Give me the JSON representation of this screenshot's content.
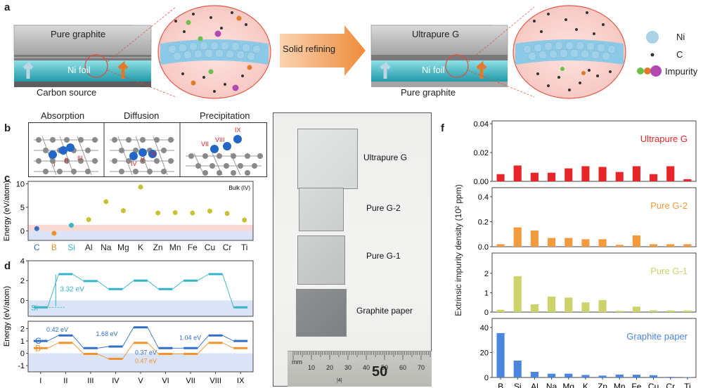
{
  "panel_a": {
    "label": "a",
    "left_stack": {
      "top_text": "Pure graphite",
      "foil_text": "Ni foil",
      "bottom_caption": "Carbon source"
    },
    "arrow_text": "Solid refining",
    "right_stack": {
      "top_text": "Ultrapure G",
      "foil_text": "Ni foil",
      "bottom_caption": "Pure graphite"
    },
    "legend": [
      {
        "name": "Ni",
        "color": "#a9d4e6"
      },
      {
        "name": "C",
        "color": "#333333"
      },
      {
        "name": "Impurity",
        "colors": [
          "#6cc04a",
          "#e07b2a",
          "#b14ab0"
        ]
      }
    ]
  },
  "panel_b": {
    "label": "b",
    "boxes": [
      {
        "title": "Absorption",
        "sites": [
          "I",
          "II",
          "III"
        ]
      },
      {
        "title": "Diffusion",
        "sites": [
          "IV",
          "V",
          "VI"
        ]
      },
      {
        "title": "Precipitation",
        "sites": [
          "VII",
          "VIII",
          "IX"
        ]
      }
    ]
  },
  "panel_c": {
    "label": "c",
    "ylabel": "Energy (eV/atom)",
    "annotation": "Bulk (IV)",
    "yticks": [
      "0",
      "5",
      "10"
    ],
    "elements": [
      {
        "name": "C",
        "value": 0.5,
        "color": "#2f6fc8"
      },
      {
        "name": "B",
        "value": -0.5,
        "color": "#f0922e"
      },
      {
        "name": "Si",
        "value": 1.2,
        "color": "#35b4c8"
      },
      {
        "name": "Al",
        "value": 2.4,
        "color": "#c8c232"
      },
      {
        "name": "Na",
        "value": 6.2,
        "color": "#c8c232"
      },
      {
        "name": "Mg",
        "value": 4.3,
        "color": "#c8c232"
      },
      {
        "name": "K",
        "value": 9.3,
        "color": "#c8c232"
      },
      {
        "name": "Zn",
        "value": 3.8,
        "color": "#c8c232"
      },
      {
        "name": "Mn",
        "value": 3.9,
        "color": "#c8c232"
      },
      {
        "name": "Fe",
        "value": 3.8,
        "color": "#c8c232"
      },
      {
        "name": "Cu",
        "value": 4.2,
        "color": "#c8c232"
      },
      {
        "name": "Cr",
        "value": 3.7,
        "color": "#c8c232"
      },
      {
        "name": "Ti",
        "value": 2.3,
        "color": "#c8c232"
      }
    ]
  },
  "panel_d": {
    "label": "d",
    "ylabel": "Energy (eV/atom)",
    "sites": [
      "I",
      "II",
      "III",
      "IV",
      "V",
      "VI",
      "VII",
      "VIII",
      "IX"
    ],
    "top": {
      "yticks": [
        "0",
        "2",
        "4"
      ],
      "series_label": "Si",
      "barrier_label": "3.32 eV",
      "si": [
        -0.7,
        2.65,
        1.95,
        1.15,
        2.0,
        1.15,
        2.0,
        2.65,
        -0.7
      ]
    },
    "bottom": {
      "yticks": [
        "-1",
        "0",
        "1",
        "2"
      ],
      "c_label": "C",
      "b_label": "B",
      "c": [
        1.0,
        1.45,
        0.42,
        0.55,
        2.1,
        0.42,
        0.42,
        1.45,
        1.0
      ],
      "b": [
        0.42,
        0.85,
        -0.05,
        -0.45,
        0.85,
        -0.05,
        -0.05,
        0.85,
        0.42
      ],
      "annotations": [
        "0.42 eV",
        "1.68 eV",
        "0.37 eV",
        "0.47 eV",
        "1.04 eV"
      ]
    }
  },
  "panel_e": {
    "label": "e",
    "samples": [
      "Ultrapure G",
      "Pure G-2",
      "Pure G-1",
      "Graphite paper"
    ],
    "ruler_unit": "mm",
    "ruler_numbers": [
      "10",
      "20",
      "30",
      "40",
      "50",
      "60",
      "70"
    ],
    "ruler_big": "50",
    "ruler_small": "|4|"
  },
  "panel_f": {
    "label": "f",
    "ylabel": "Extrinsic impurity density (10² ppm)",
    "type": "bar",
    "categories": [
      "B",
      "Si",
      "Al",
      "Na",
      "Mg",
      "K",
      "Zn",
      "Mn",
      "Fe",
      "Cu",
      "Cr",
      "Ti"
    ],
    "series": [
      {
        "name": "Ultrapure G",
        "color": "#e8262a",
        "ymax": 0.04,
        "yticks": [
          "0.00",
          "0.02",
          "0.04"
        ],
        "values": [
          0.005,
          0.011,
          0.006,
          0.006,
          0.009,
          0.0105,
          0.01,
          0.0065,
          0.0105,
          0.005,
          0.0105,
          0.0015
        ]
      },
      {
        "name": "Pure G-2",
        "color": "#f39a3c",
        "ymax": 0.45,
        "yticks": [
          "0.0",
          "0.2",
          "0.4"
        ],
        "values": [
          0.02,
          0.155,
          0.13,
          0.07,
          0.07,
          0.06,
          0.06,
          0.015,
          0.09,
          0.02,
          0.02,
          0.02
        ]
      },
      {
        "name": "Pure G-1",
        "color": "#cdd36b",
        "ymax": 2.9,
        "yticks": [
          "0",
          "1",
          "2"
        ],
        "values": [
          0.12,
          1.85,
          0.4,
          0.8,
          0.75,
          0.5,
          0.62,
          0.06,
          0.28,
          0.09,
          0.08,
          0.08
        ]
      },
      {
        "name": "Graphite paper",
        "color": "#4a86e0",
        "ymax": 45,
        "yticks": [
          "0",
          "20",
          "40"
        ],
        "values": [
          35.5,
          13.5,
          4.5,
          3.0,
          3.0,
          2.0,
          1.5,
          2.3,
          2.2,
          1.8,
          0.5,
          0.3
        ]
      }
    ]
  }
}
